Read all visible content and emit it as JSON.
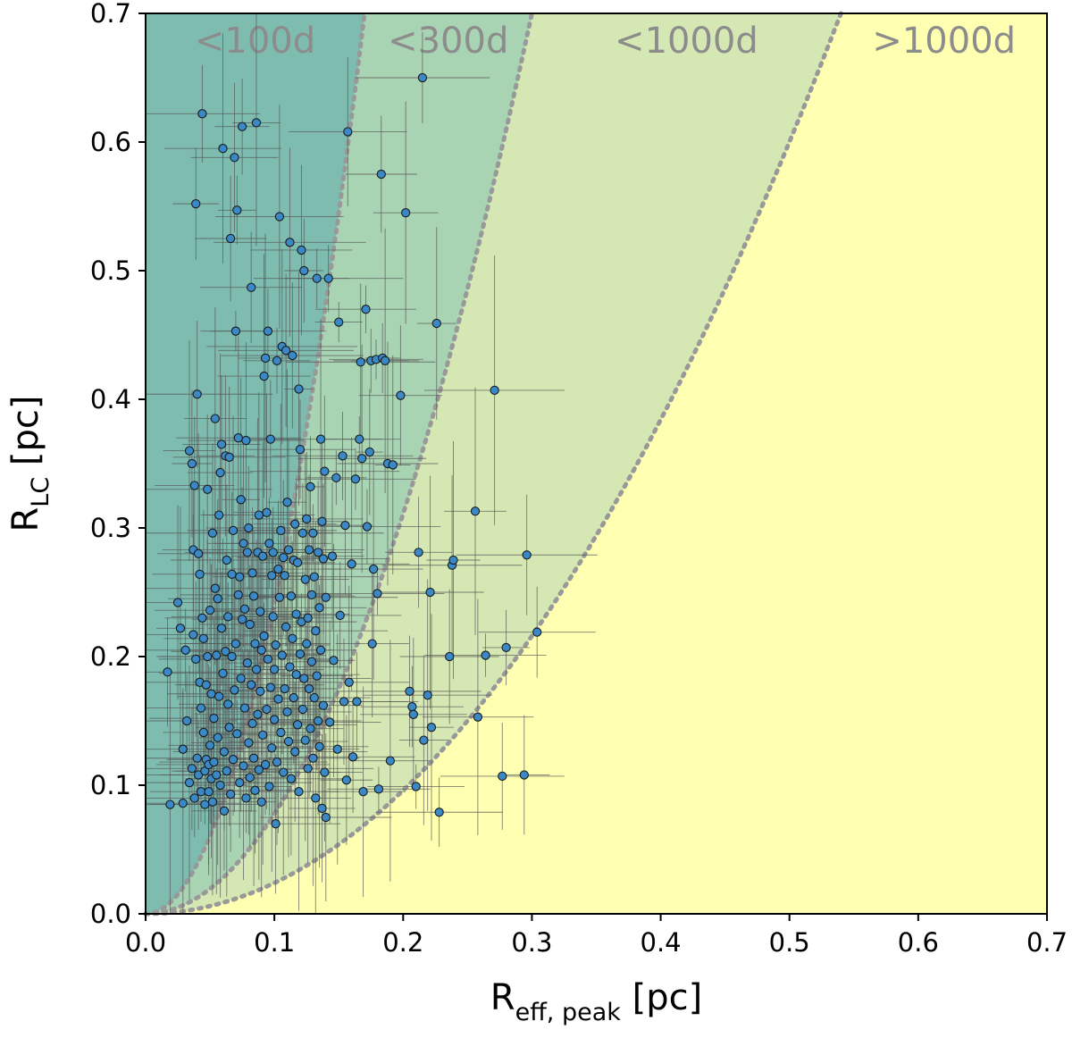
{
  "chart_data": {
    "type": "scatter",
    "title": "",
    "xlabel": {
      "main": "R",
      "sub": "eff, peak",
      "unit": " [pc]"
    },
    "ylabel": {
      "main": "R",
      "sub": "LC",
      "unit": " [pc]"
    },
    "xlim": [
      0.0,
      0.7
    ],
    "ylim": [
      0.0,
      0.7
    ],
    "xticks": [
      "0.0",
      "0.1",
      "0.2",
      "0.3",
      "0.4",
      "0.5",
      "0.6",
      "0.7"
    ],
    "yticks": [
      "0.0",
      "0.1",
      "0.2",
      "0.3",
      "0.4",
      "0.5",
      "0.6",
      "0.7"
    ],
    "grid": false,
    "regions": [
      {
        "label": "<100d",
        "color": "#7ebcb0",
        "boundary_x_at_top": 0.17
      },
      {
        "label": "<300d",
        "color": "#a9d4b3",
        "boundary_x_at_top": 0.3
      },
      {
        "label": "<1000d",
        "color": "#d5e8b3",
        "boundary_x_at_top": 0.54
      },
      {
        "label": ">1000d",
        "color": "#ffffb2"
      }
    ],
    "boundary_style": {
      "color": "#999999",
      "dash": "dotted"
    },
    "marker_color": "#3a88c6",
    "errorbar_color": "#555555",
    "points": [
      [
        0.017,
        0.188
      ],
      [
        0.019,
        0.085
      ],
      [
        0.025,
        0.242
      ],
      [
        0.027,
        0.222
      ],
      [
        0.029,
        0.086
      ],
      [
        0.029,
        0.128
      ],
      [
        0.031,
        0.205
      ],
      [
        0.032,
        0.15
      ],
      [
        0.034,
        0.36
      ],
      [
        0.034,
        0.102
      ],
      [
        0.036,
        0.35
      ],
      [
        0.036,
        0.113
      ],
      [
        0.037,
        0.283
      ],
      [
        0.037,
        0.217
      ],
      [
        0.038,
        0.333
      ],
      [
        0.038,
        0.09
      ],
      [
        0.039,
        0.552
      ],
      [
        0.039,
        0.198
      ],
      [
        0.04,
        0.404
      ],
      [
        0.04,
        0.121
      ],
      [
        0.041,
        0.28
      ],
      [
        0.041,
        0.108
      ],
      [
        0.042,
        0.264
      ],
      [
        0.042,
        0.18
      ],
      [
        0.043,
        0.095
      ],
      [
        0.043,
        0.16
      ],
      [
        0.044,
        0.622
      ],
      [
        0.044,
        0.23
      ],
      [
        0.045,
        0.214
      ],
      [
        0.045,
        0.141
      ],
      [
        0.046,
        0.111
      ],
      [
        0.046,
        0.085
      ],
      [
        0.047,
        0.178
      ],
      [
        0.047,
        0.12
      ],
      [
        0.048,
        0.33
      ],
      [
        0.048,
        0.2
      ],
      [
        0.049,
        0.116
      ],
      [
        0.049,
        0.095
      ],
      [
        0.05,
        0.131
      ],
      [
        0.05,
        0.236
      ],
      [
        0.051,
        0.171
      ],
      [
        0.051,
        0.105
      ],
      [
        0.052,
        0.296
      ],
      [
        0.052,
        0.087
      ],
      [
        0.053,
        0.118
      ],
      [
        0.053,
        0.152
      ],
      [
        0.054,
        0.385
      ],
      [
        0.054,
        0.253
      ],
      [
        0.055,
        0.201
      ],
      [
        0.055,
        0.108
      ],
      [
        0.056,
        0.245
      ],
      [
        0.056,
        0.137
      ],
      [
        0.057,
        0.31
      ],
      [
        0.057,
        0.169
      ],
      [
        0.058,
        0.343
      ],
      [
        0.058,
        0.1
      ],
      [
        0.059,
        0.365
      ],
      [
        0.059,
        0.222
      ],
      [
        0.06,
        0.595
      ],
      [
        0.06,
        0.187
      ],
      [
        0.061,
        0.126
      ],
      [
        0.061,
        0.08
      ],
      [
        0.062,
        0.356
      ],
      [
        0.062,
        0.204
      ],
      [
        0.063,
        0.275
      ],
      [
        0.063,
        0.111
      ],
      [
        0.064,
        0.231
      ],
      [
        0.064,
        0.163
      ],
      [
        0.065,
        0.355
      ],
      [
        0.065,
        0.145
      ],
      [
        0.066,
        0.525
      ],
      [
        0.066,
        0.093
      ],
      [
        0.067,
        0.264
      ],
      [
        0.067,
        0.2
      ],
      [
        0.068,
        0.298
      ],
      [
        0.068,
        0.12
      ],
      [
        0.069,
        0.588
      ],
      [
        0.069,
        0.174
      ],
      [
        0.07,
        0.453
      ],
      [
        0.07,
        0.21
      ],
      [
        0.071,
        0.547
      ],
      [
        0.071,
        0.14
      ],
      [
        0.072,
        0.37
      ],
      [
        0.072,
        0.248
      ],
      [
        0.073,
        0.262
      ],
      [
        0.073,
        0.102
      ],
      [
        0.074,
        0.322
      ],
      [
        0.074,
        0.183
      ],
      [
        0.075,
        0.612
      ],
      [
        0.075,
        0.229
      ],
      [
        0.076,
        0.288
      ],
      [
        0.076,
        0.115
      ],
      [
        0.077,
        0.237
      ],
      [
        0.077,
        0.16
      ],
      [
        0.078,
        0.368
      ],
      [
        0.078,
        0.09
      ],
      [
        0.079,
        0.281
      ],
      [
        0.079,
        0.195
      ],
      [
        0.08,
        0.3
      ],
      [
        0.08,
        0.133
      ],
      [
        0.081,
        0.225
      ],
      [
        0.081,
        0.106
      ],
      [
        0.082,
        0.487
      ],
      [
        0.082,
        0.178
      ],
      [
        0.083,
        0.265
      ],
      [
        0.083,
        0.148
      ],
      [
        0.084,
        0.247
      ],
      [
        0.084,
        0.121
      ],
      [
        0.085,
        0.21
      ],
      [
        0.085,
        0.096
      ],
      [
        0.086,
        0.615
      ],
      [
        0.086,
        0.19
      ],
      [
        0.087,
        0.281
      ],
      [
        0.087,
        0.155
      ],
      [
        0.088,
        0.31
      ],
      [
        0.088,
        0.112
      ],
      [
        0.089,
        0.235
      ],
      [
        0.089,
        0.173
      ],
      [
        0.09,
        0.205
      ],
      [
        0.09,
        0.087
      ],
      [
        0.091,
        0.278
      ],
      [
        0.091,
        0.139
      ],
      [
        0.092,
        0.418
      ],
      [
        0.092,
        0.216
      ],
      [
        0.093,
        0.432
      ],
      [
        0.093,
        0.116
      ],
      [
        0.094,
        0.312
      ],
      [
        0.094,
        0.159
      ],
      [
        0.095,
        0.453
      ],
      [
        0.095,
        0.198
      ],
      [
        0.096,
        0.288
      ],
      [
        0.096,
        0.099
      ],
      [
        0.097,
        0.369
      ],
      [
        0.097,
        0.176
      ],
      [
        0.098,
        0.263
      ],
      [
        0.098,
        0.129
      ],
      [
        0.099,
        0.281
      ],
      [
        0.099,
        0.231
      ],
      [
        0.1,
        0.151
      ],
      [
        0.1,
        0.19
      ],
      [
        0.101,
        0.07
      ],
      [
        0.101,
        0.209
      ],
      [
        0.102,
        0.43
      ],
      [
        0.102,
        0.118
      ],
      [
        0.103,
        0.268
      ],
      [
        0.103,
        0.167
      ],
      [
        0.104,
        0.542
      ],
      [
        0.104,
        0.246
      ],
      [
        0.105,
        0.298
      ],
      [
        0.105,
        0.141
      ],
      [
        0.106,
        0.441
      ],
      [
        0.106,
        0.201
      ],
      [
        0.107,
        0.277
      ],
      [
        0.107,
        0.11
      ],
      [
        0.108,
        0.263
      ],
      [
        0.108,
        0.175
      ],
      [
        0.109,
        0.438
      ],
      [
        0.109,
        0.223
      ],
      [
        0.11,
        0.32
      ],
      [
        0.11,
        0.157
      ],
      [
        0.111,
        0.283
      ],
      [
        0.111,
        0.134
      ],
      [
        0.112,
        0.522
      ],
      [
        0.112,
        0.192
      ],
      [
        0.113,
        0.247
      ],
      [
        0.113,
        0.105
      ],
      [
        0.114,
        0.434
      ],
      [
        0.114,
        0.214
      ],
      [
        0.115,
        0.275
      ],
      [
        0.115,
        0.168
      ],
      [
        0.116,
        0.303
      ],
      [
        0.116,
        0.126
      ],
      [
        0.117,
        0.233
      ],
      [
        0.117,
        0.186
      ],
      [
        0.118,
        0.273
      ],
      [
        0.118,
        0.147
      ],
      [
        0.119,
        0.408
      ],
      [
        0.119,
        0.095
      ],
      [
        0.12,
        0.361
      ],
      [
        0.12,
        0.202
      ],
      [
        0.121,
        0.516
      ],
      [
        0.121,
        0.227
      ],
      [
        0.122,
        0.296
      ],
      [
        0.122,
        0.159
      ],
      [
        0.123,
        0.5
      ],
      [
        0.123,
        0.183
      ],
      [
        0.124,
        0.26
      ],
      [
        0.124,
        0.135
      ],
      [
        0.125,
        0.307
      ],
      [
        0.125,
        0.21
      ],
      [
        0.126,
        0.23
      ],
      [
        0.126,
        0.113
      ],
      [
        0.127,
        0.283
      ],
      [
        0.127,
        0.175
      ],
      [
        0.128,
        0.332
      ],
      [
        0.128,
        0.144
      ],
      [
        0.129,
        0.248
      ],
      [
        0.129,
        0.196
      ],
      [
        0.13,
        0.296
      ],
      [
        0.13,
        0.121
      ],
      [
        0.131,
        0.262
      ],
      [
        0.131,
        0.168
      ],
      [
        0.132,
        0.22
      ],
      [
        0.132,
        0.09
      ],
      [
        0.133,
        0.494
      ],
      [
        0.133,
        0.185
      ],
      [
        0.134,
        0.281
      ],
      [
        0.134,
        0.15
      ],
      [
        0.135,
        0.238
      ],
      [
        0.135,
        0.13
      ],
      [
        0.136,
        0.369
      ],
      [
        0.136,
        0.205
      ],
      [
        0.137,
        0.305
      ],
      [
        0.137,
        0.082
      ],
      [
        0.138,
        0.276
      ],
      [
        0.138,
        0.162
      ],
      [
        0.139,
        0.344
      ],
      [
        0.139,
        0.11
      ],
      [
        0.14,
        0.075
      ],
      [
        0.14,
        0.246
      ],
      [
        0.142,
        0.494
      ],
      [
        0.143,
        0.149
      ],
      [
        0.145,
        0.278
      ],
      [
        0.146,
        0.197
      ],
      [
        0.148,
        0.339
      ],
      [
        0.149,
        0.128
      ],
      [
        0.15,
        0.46
      ],
      [
        0.151,
        0.232
      ],
      [
        0.153,
        0.356
      ],
      [
        0.154,
        0.165
      ],
      [
        0.155,
        0.302
      ],
      [
        0.156,
        0.104
      ],
      [
        0.157,
        0.608
      ],
      [
        0.158,
        0.18
      ],
      [
        0.16,
        0.272
      ],
      [
        0.161,
        0.122
      ],
      [
        0.163,
        0.338
      ],
      [
        0.164,
        0.165
      ],
      [
        0.166,
        0.369
      ],
      [
        0.167,
        0.429
      ],
      [
        0.168,
        0.354
      ],
      [
        0.169,
        0.095
      ],
      [
        0.171,
        0.47
      ],
      [
        0.172,
        0.301
      ],
      [
        0.174,
        0.359
      ],
      [
        0.175,
        0.43
      ],
      [
        0.176,
        0.21
      ],
      [
        0.177,
        0.268
      ],
      [
        0.179,
        0.431
      ],
      [
        0.18,
        0.249
      ],
      [
        0.181,
        0.097
      ],
      [
        0.183,
        0.575
      ],
      [
        0.184,
        0.432
      ],
      [
        0.186,
        0.43
      ],
      [
        0.188,
        0.35
      ],
      [
        0.19,
        0.119
      ],
      [
        0.192,
        0.349
      ],
      [
        0.198,
        0.403
      ],
      [
        0.202,
        0.545
      ],
      [
        0.205,
        0.173
      ],
      [
        0.207,
        0.161
      ],
      [
        0.208,
        0.155
      ],
      [
        0.21,
        0.099
      ],
      [
        0.212,
        0.281
      ],
      [
        0.215,
        0.65
      ],
      [
        0.216,
        0.135
      ],
      [
        0.219,
        0.17
      ],
      [
        0.221,
        0.25
      ],
      [
        0.222,
        0.145
      ],
      [
        0.226,
        0.459
      ],
      [
        0.228,
        0.079
      ],
      [
        0.236,
        0.2
      ],
      [
        0.238,
        0.271
      ],
      [
        0.239,
        0.275
      ],
      [
        0.256,
        0.313
      ],
      [
        0.258,
        0.153
      ],
      [
        0.264,
        0.201
      ],
      [
        0.271,
        0.407
      ],
      [
        0.277,
        0.107
      ],
      [
        0.28,
        0.207
      ],
      [
        0.294,
        0.108
      ],
      [
        0.296,
        0.279
      ],
      [
        0.304,
        0.219
      ]
    ]
  }
}
